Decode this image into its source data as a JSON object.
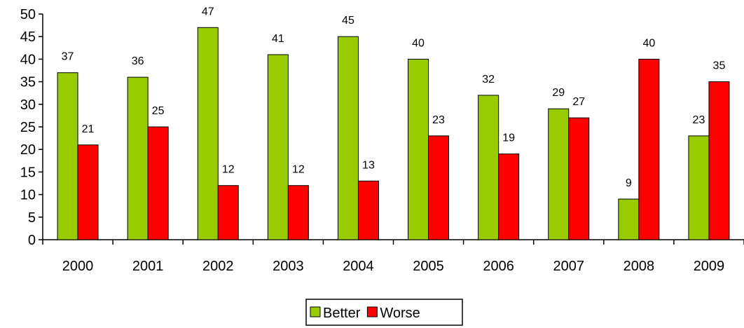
{
  "chart_data": {
    "type": "bar",
    "categories": [
      "2000",
      "2001",
      "2002",
      "2003",
      "2004",
      "2005",
      "2006",
      "2007",
      "2008",
      "2009"
    ],
    "series": [
      {
        "name": "Better",
        "values": [
          37,
          36,
          47,
          41,
          45,
          40,
          32,
          29,
          9,
          23
        ],
        "color": "#99CC00"
      },
      {
        "name": "Worse",
        "values": [
          21,
          25,
          12,
          12,
          13,
          23,
          19,
          27,
          40,
          35
        ],
        "color": "#FF0000"
      }
    ],
    "title": "",
    "xlabel": "",
    "ylabel": "",
    "ylim": [
      0,
      50
    ],
    "yticks": [
      0,
      5,
      10,
      15,
      20,
      25,
      30,
      35,
      40,
      45,
      50
    ],
    "grid": false,
    "legend": "bottom-center"
  }
}
